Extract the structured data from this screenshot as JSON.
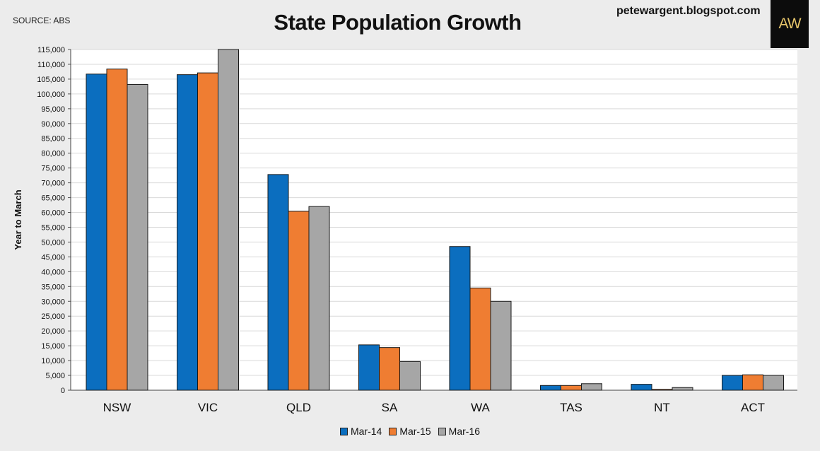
{
  "header": {
    "source": "SOURCE: ABS",
    "blog": "petewargent.blogspot.com",
    "logo_text": "AW"
  },
  "chart_data": {
    "type": "bar",
    "title": "State Population Growth",
    "ylabel": "Year to March",
    "xlabel": "",
    "ylim": [
      0,
      115000
    ],
    "ytick_step": 5000,
    "grid": true,
    "legend_position": "bottom",
    "categories": [
      "NSW",
      "VIC",
      "QLD",
      "SA",
      "WA",
      "TAS",
      "NT",
      "ACT"
    ],
    "series": [
      {
        "name": "Mar-14",
        "color": "#0b6ebf",
        "values": [
          106700,
          106500,
          72800,
          15300,
          48500,
          1600,
          2000,
          5000
        ]
      },
      {
        "name": "Mar-15",
        "color": "#ef7d32",
        "values": [
          108400,
          107100,
          60400,
          14400,
          34500,
          1600,
          300,
          5200
        ]
      },
      {
        "name": "Mar-16",
        "color": "#a6a6a6",
        "values": [
          103200,
          115000,
          62000,
          9700,
          30000,
          2200,
          900,
          5000
        ]
      }
    ]
  }
}
